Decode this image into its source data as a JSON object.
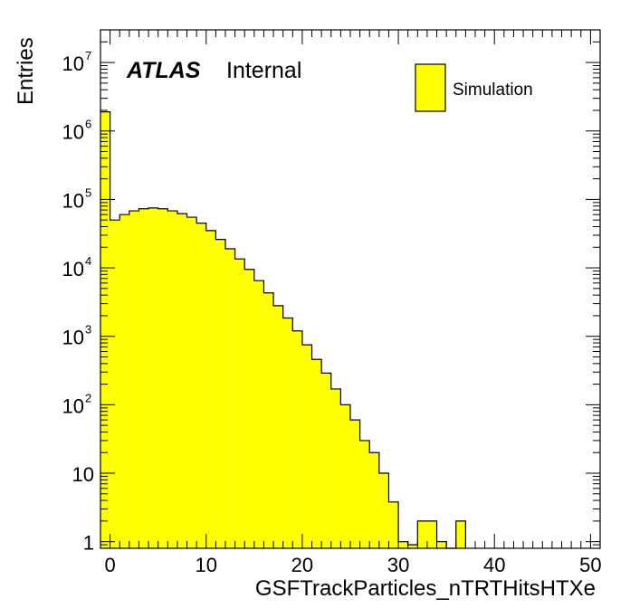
{
  "chart_data": {
    "type": "bar",
    "histogram": true,
    "log_y": true,
    "xlabel": "GSFTrackParticles_nTRTHitsHTXe",
    "ylabel": "Entries",
    "xlim": [
      -1,
      51
    ],
    "ylim": [
      0.8,
      30000000
    ],
    "x_bin_width": 1,
    "x_bin_starts": [
      -1,
      0,
      1,
      2,
      3,
      4,
      5,
      6,
      7,
      8,
      9,
      10,
      11,
      12,
      13,
      14,
      15,
      16,
      17,
      18,
      19,
      20,
      21,
      22,
      23,
      24,
      25,
      26,
      27,
      28,
      29,
      30,
      31,
      32,
      33,
      34,
      35,
      36
    ],
    "values": [
      1900000,
      50000,
      60000,
      68000,
      73000,
      75000,
      73000,
      68000,
      62000,
      55000,
      45000,
      35000,
      26000,
      19000,
      13500,
      9500,
      6500,
      4300,
      2800,
      1850,
      1200,
      750,
      460,
      290,
      170,
      100,
      60,
      30,
      20,
      10,
      3.8,
      1,
      0.9,
      2,
      2,
      1,
      0,
      2
    ],
    "x_ticks": [
      0,
      10,
      20,
      30,
      40,
      50
    ],
    "x_tick_labels": [
      "0",
      "10",
      "20",
      "30",
      "40",
      "50"
    ],
    "y_ticks": [
      {
        "value": 1,
        "base": "1",
        "exp": ""
      },
      {
        "value": 10,
        "base": "10",
        "exp": ""
      },
      {
        "value": 100,
        "base": "10",
        "exp": "2"
      },
      {
        "value": 1000,
        "base": "10",
        "exp": "3"
      },
      {
        "value": 10000,
        "base": "10",
        "exp": "4"
      },
      {
        "value": 100000,
        "base": "10",
        "exp": "5"
      },
      {
        "value": 1000000,
        "base": "10",
        "exp": "6"
      },
      {
        "value": 10000000,
        "base": "10",
        "exp": "7"
      }
    ],
    "fill_color": "#ffff00",
    "line_color": "#000000",
    "grid": false,
    "legend": {
      "placement": "top-right",
      "entries": [
        {
          "label": "Simulation",
          "color": "#ffff00"
        }
      ]
    },
    "annotation": {
      "experiment": "ATLAS",
      "status": "Internal"
    }
  }
}
